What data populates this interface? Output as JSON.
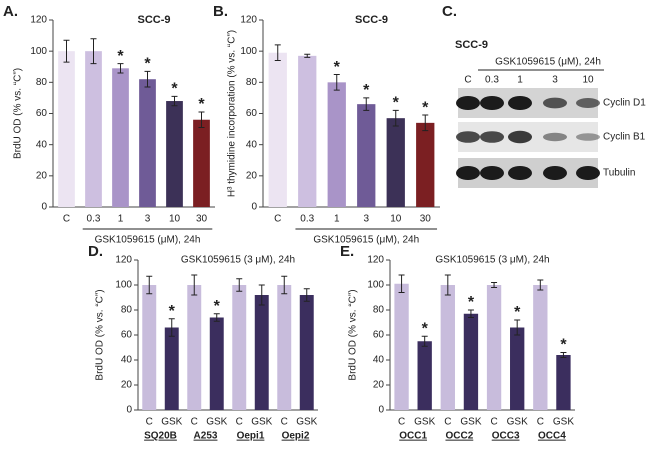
{
  "chart_data": [
    {
      "type": "bar",
      "panel_label": "A.",
      "title": "SCC-9",
      "y_label": "BrdU OD (% vs. “C”)",
      "x_label": "GSK1059615 (μM), 24h",
      "categories": [
        "C",
        "0.3",
        "1",
        "3",
        "10",
        "30"
      ],
      "values": [
        100,
        100,
        89,
        82,
        68,
        56
      ],
      "errors": [
        7,
        8,
        3,
        5,
        3,
        5
      ],
      "colors": [
        "#ece4f2",
        "#cdbfe0",
        "#a994c8",
        "#6f5b97",
        "#3c3157",
        "#7b1f22"
      ],
      "significance": [
        null,
        null,
        "*",
        "*",
        "*",
        "*"
      ],
      "ylim": [
        0,
        120
      ],
      "yticks": [
        0,
        20,
        40,
        60,
        80,
        100,
        120
      ]
    },
    {
      "type": "bar",
      "panel_label": "B.",
      "title": "SCC-9",
      "y_label": "H³ thymidine incorporation (% vs. “C”)",
      "x_label": "GSK1059615 (μM), 24h",
      "categories": [
        "C",
        "0.3",
        "1",
        "3",
        "10",
        "30"
      ],
      "values": [
        99,
        97,
        80,
        66,
        57,
        54
      ],
      "errors": [
        5,
        1,
        5,
        4,
        5,
        5
      ],
      "colors": [
        "#ece4f2",
        "#cdbfe0",
        "#a994c8",
        "#6f5b97",
        "#3c3157",
        "#7b1f22"
      ],
      "significance": [
        null,
        null,
        "*",
        "*",
        "*",
        "*"
      ],
      "ylim": [
        0,
        120
      ],
      "yticks": [
        0,
        20,
        40,
        60,
        80,
        100,
        120
      ]
    },
    {
      "type": "bar",
      "panel_label": "D.",
      "title": "GSK1059615 (3 μM), 24h",
      "y_label": "BrdU OD (% vs. “C”)",
      "categories": [
        "C",
        "GSK",
        "C",
        "GSK",
        "C",
        "GSK",
        "C",
        "GSK"
      ],
      "groups": [
        "SQ20B",
        "A253",
        "Oepi1",
        "Oepi2"
      ],
      "values": [
        100,
        66,
        100,
        74,
        100,
        92,
        100,
        92
      ],
      "errors": [
        7,
        7,
        8,
        3,
        5,
        8,
        7,
        5
      ],
      "colors": [
        "#c8bcdc",
        "#3b2e5e",
        "#c8bcdc",
        "#3b2e5e",
        "#c8bcdc",
        "#3b2e5e",
        "#c8bcdc",
        "#3b2e5e"
      ],
      "significance": [
        null,
        "*",
        null,
        "*",
        null,
        null,
        null,
        null
      ],
      "ylim": [
        0,
        120
      ],
      "yticks": [
        0,
        20,
        40,
        60,
        80,
        100,
        120
      ]
    },
    {
      "type": "bar",
      "panel_label": "E.",
      "title": "GSK1059615 (3 μM), 24h",
      "y_label": "BrdU OD (% vs. “C”)",
      "categories": [
        "C",
        "GSK",
        "C",
        "GSK",
        "C",
        "GSK",
        "C",
        "GSK"
      ],
      "groups": [
        "OCC1",
        "OCC2",
        "OCC3",
        "OCC4"
      ],
      "values": [
        101,
        55,
        100,
        77,
        100,
        66,
        100,
        44
      ],
      "errors": [
        7,
        4,
        8,
        3,
        2,
        6,
        4,
        2
      ],
      "colors": [
        "#c8bcdc",
        "#3b2e5e",
        "#c8bcdc",
        "#3b2e5e",
        "#c8bcdc",
        "#3b2e5e",
        "#c8bcdc",
        "#3b2e5e"
      ],
      "significance": [
        null,
        "*",
        null,
        "*",
        null,
        "*",
        null,
        "*"
      ],
      "ylim": [
        0,
        120
      ],
      "yticks": [
        0,
        20,
        40,
        60,
        80,
        100,
        120
      ]
    }
  ],
  "blot": {
    "panel_label": "C.",
    "title": "SCC-9",
    "treatment": "GSK1059615 (μM), 24h",
    "lanes": [
      "C",
      "0.3",
      "1",
      "3",
      "10"
    ],
    "rows": [
      "Cyclin D1",
      "Cyclin B1",
      "Tubulin"
    ]
  }
}
